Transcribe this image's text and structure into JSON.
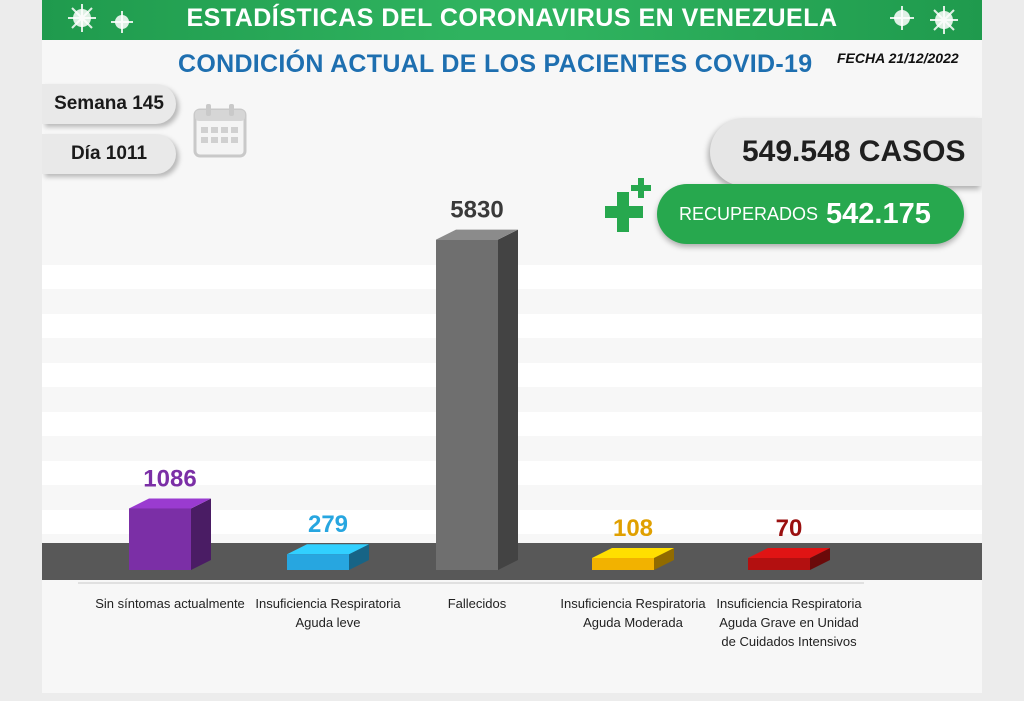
{
  "header": {
    "title": "ESTADÍSTICAS DEL CORONAVIRUS EN VENEZUELA",
    "subtitle": "CONDICIÓN ACTUAL DE LOS PACIENTES COVID-19",
    "fecha": "FECHA 21/12/2022"
  },
  "info": {
    "semana": "Semana 145",
    "dia": "Día 1011",
    "casos": "549.548 CASOS",
    "recuperados_label": "RECUPERADOS",
    "recuperados_value": "542.175"
  },
  "icons": [
    "virus-icon",
    "calendar-icon",
    "plus-icon"
  ],
  "chart_data": {
    "type": "bar",
    "categories": [
      "Sin síntomas actualmente",
      "Insuficiencia Respiratoria Aguda leve",
      "Fallecidos",
      "Insuficiencia Respiratoria Aguda Moderada",
      "Insuficiencia Respiratoria Aguda Grave en Unidad de Cuidados Intensivos"
    ],
    "values": [
      1086,
      279,
      5830,
      108,
      70
    ],
    "value_labels": [
      "1086",
      "279",
      "5830",
      "108",
      "70"
    ],
    "colors": [
      "#7b2fa6",
      "#27a6e0",
      "#6f6f6f",
      "#f2b200",
      "#b31010"
    ],
    "label_colors": [
      "#7b2fa6",
      "#27a6e0",
      "#3a3a3a",
      "#e0a000",
      "#9a1010"
    ],
    "ylim": [
      0,
      6000
    ],
    "grid": true,
    "legend": "none"
  }
}
